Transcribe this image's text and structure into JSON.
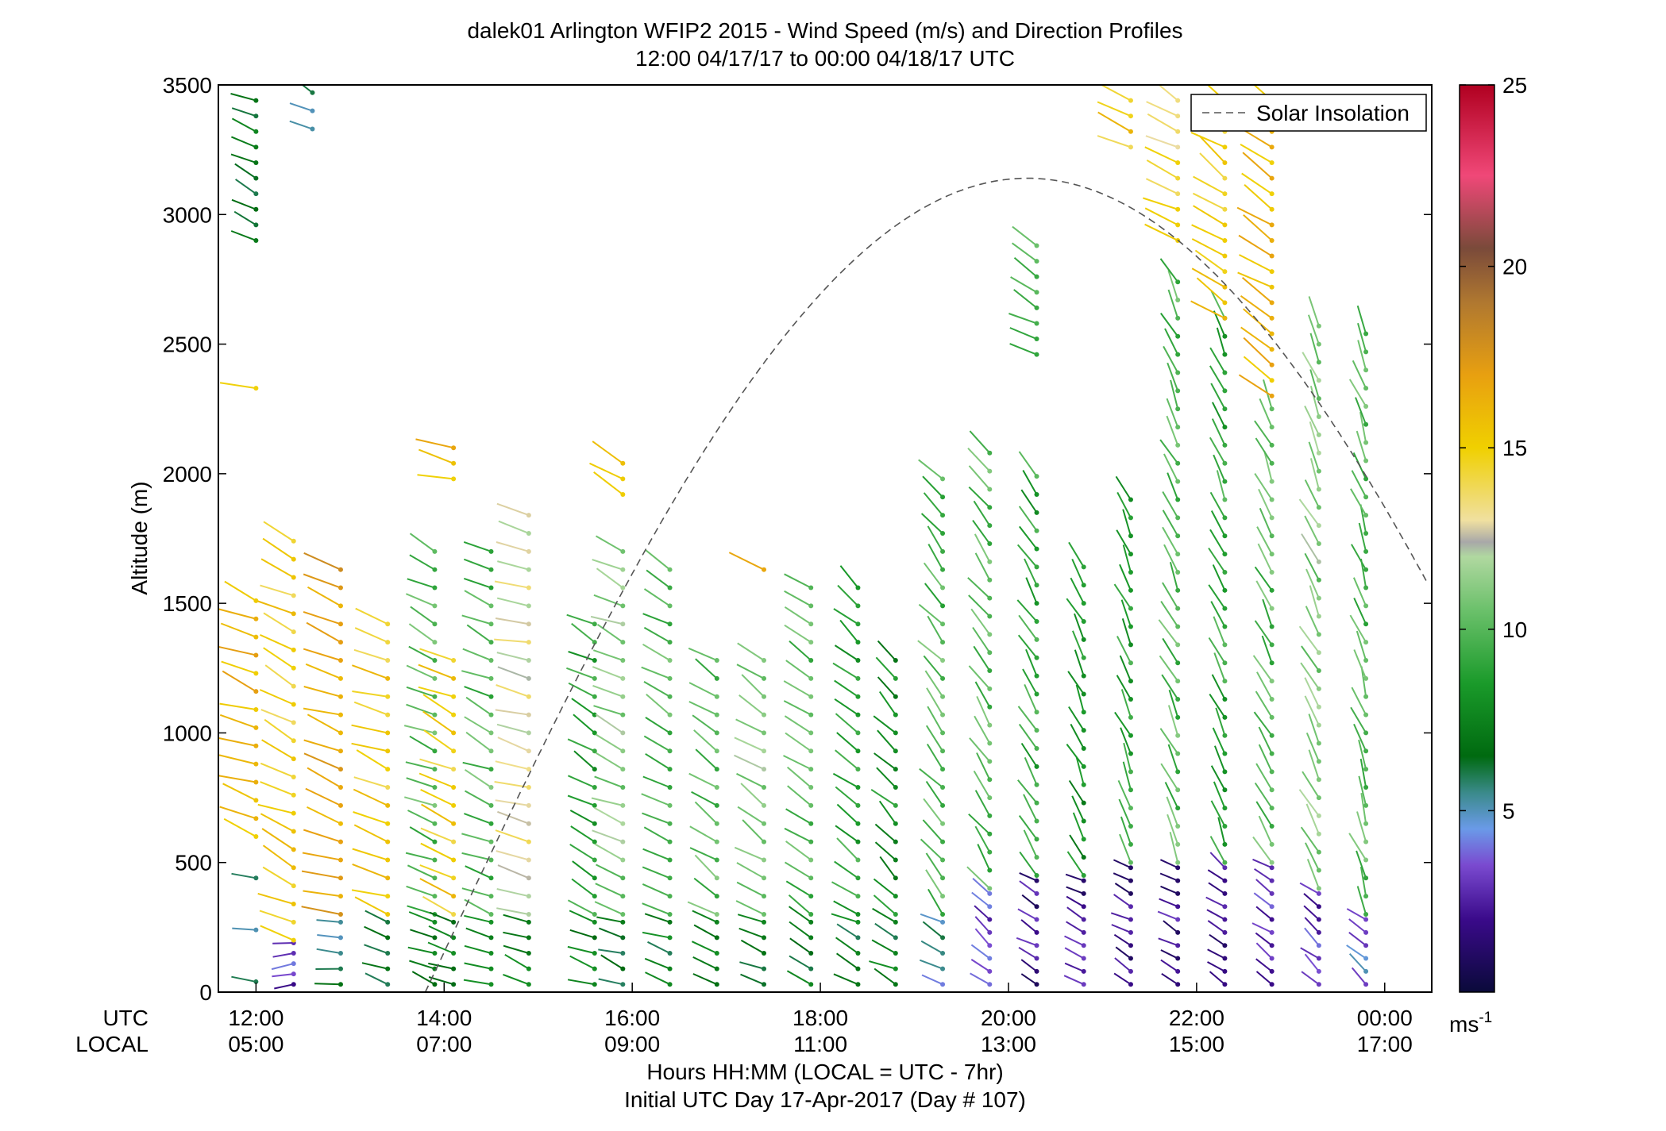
{
  "chart_data": {
    "type": "wind-barb-profile",
    "title": "dalek01 Arlington WFIP2 2015 - Wind Speed (m/s) and Direction Profiles",
    "subtitle": "12:00 04/17/17 to 00:00 04/18/17  UTC",
    "ylabel": "Altitude (m)",
    "xlabel": "Hours HH:MM  (LOCAL = UTC - 7hr)",
    "xlabel2": "Initial UTC Day 17-Apr-2017 (Day # 107)",
    "utc_label": "UTC",
    "local_label": "LOCAL",
    "ylim": [
      0,
      3500
    ],
    "xlim_hours": [
      11.6,
      24.5
    ],
    "y_ticks": [
      "0",
      "500",
      "1000",
      "1500",
      "2000",
      "2500",
      "3000",
      "3500"
    ],
    "x_ticks_utc": [
      "12:00",
      "14:00",
      "16:00",
      "18:00",
      "20:00",
      "22:00",
      "00:00"
    ],
    "x_ticks_local": [
      "05:00",
      "07:00",
      "09:00",
      "11:00",
      "13:00",
      "15:00",
      "17:00"
    ],
    "legend": {
      "entry": "Solar Insolation",
      "placement": "top-right",
      "style": "dashed"
    },
    "colorbar": {
      "range": [
        0,
        25
      ],
      "ticks": [
        "5",
        "10",
        "15",
        "20",
        "25"
      ],
      "unit_text": "ms",
      "unit_exp": "-1",
      "stops": [
        {
          "v": 0,
          "c": "#0a0a3a"
        },
        {
          "v": 2,
          "c": "#3a0a8a"
        },
        {
          "v": 3.5,
          "c": "#7a4ad0"
        },
        {
          "v": 4.5,
          "c": "#6a9ae8"
        },
        {
          "v": 5.5,
          "c": "#3a8a8a"
        },
        {
          "v": 6.5,
          "c": "#006a10"
        },
        {
          "v": 8.5,
          "c": "#1a9a2a"
        },
        {
          "v": 10.5,
          "c": "#6ac06a"
        },
        {
          "v": 12,
          "c": "#b0d8a0"
        },
        {
          "v": 12.4,
          "c": "#a8a8a8"
        },
        {
          "v": 13,
          "c": "#f0e0a0"
        },
        {
          "v": 15,
          "c": "#f0d000"
        },
        {
          "v": 17,
          "c": "#e8a010"
        },
        {
          "v": 19,
          "c": "#b07830"
        },
        {
          "v": 20.5,
          "c": "#7a4a3a"
        },
        {
          "v": 22.5,
          "c": "#f04878"
        },
        {
          "v": 25,
          "c": "#b00020"
        }
      ]
    },
    "solar_insolation_peak_altitude_m": 3140,
    "solar_insolation_peak_hour_utc": 20.2,
    "solar_insolation_rise_hour_utc": 13.8,
    "profiles": [
      {
        "t": 12.0,
        "segments": [
          [
            40,
            600,
            200,
            6,
            280
          ],
          [
            600,
            1560,
            70,
            16,
            290
          ],
          [
            2330,
            2330,
            1,
            15,
            285
          ],
          [
            2900,
            3480,
            60,
            7,
            295
          ]
        ]
      },
      {
        "t": 12.4,
        "segments": [
          [
            30,
            200,
            40,
            3,
            260
          ],
          [
            200,
            1760,
            70,
            15,
            295
          ]
        ]
      },
      {
        "t": 12.6,
        "segments": [
          [
            3330,
            3480,
            70,
            6,
            300
          ]
        ]
      },
      {
        "t": 12.9,
        "segments": [
          [
            30,
            300,
            60,
            6,
            280
          ],
          [
            300,
            1640,
            70,
            17,
            290
          ]
        ]
      },
      {
        "t": 13.4,
        "segments": [
          [
            30,
            300,
            60,
            6,
            285
          ],
          [
            300,
            1480,
            70,
            15,
            290
          ]
        ]
      },
      {
        "t": 13.9,
        "segments": [
          [
            30,
            300,
            60,
            7,
            290
          ],
          [
            300,
            1760,
            70,
            10,
            295
          ]
        ]
      },
      {
        "t": 14.1,
        "segments": [
          [
            30,
            300,
            60,
            7,
            290
          ],
          [
            300,
            1280,
            70,
            15,
            295
          ],
          [
            1980,
            2130,
            60,
            16,
            280
          ]
        ]
      },
      {
        "t": 14.5,
        "segments": [
          [
            30,
            300,
            60,
            8,
            290
          ],
          [
            300,
            1700,
            70,
            10,
            295
          ]
        ]
      },
      {
        "t": 14.9,
        "segments": [
          [
            30,
            300,
            60,
            8,
            290
          ],
          [
            300,
            1840,
            70,
            13,
            285
          ]
        ]
      },
      {
        "t": 15.6,
        "segments": [
          [
            30,
            300,
            60,
            7,
            290
          ],
          [
            300,
            1480,
            70,
            9,
            300
          ]
        ]
      },
      {
        "t": 15.9,
        "segments": [
          [
            30,
            300,
            60,
            7,
            290
          ],
          [
            300,
            1760,
            70,
            11,
            295
          ],
          [
            1920,
            2060,
            60,
            15,
            300
          ]
        ]
      },
      {
        "t": 16.4,
        "segments": [
          [
            30,
            300,
            60,
            7,
            290
          ],
          [
            300,
            1690,
            70,
            10,
            300
          ]
        ]
      },
      {
        "t": 16.9,
        "segments": [
          [
            30,
            300,
            60,
            7,
            290
          ],
          [
            300,
            1340,
            70,
            10,
            305
          ]
        ]
      },
      {
        "t": 17.4,
        "segments": [
          [
            30,
            300,
            60,
            7,
            290
          ],
          [
            300,
            1340,
            70,
            11,
            305
          ],
          [
            1630,
            1630,
            1,
            16,
            290
          ]
        ]
      },
      {
        "t": 17.9,
        "segments": [
          [
            30,
            300,
            60,
            7,
            295
          ],
          [
            300,
            1580,
            70,
            10,
            305
          ]
        ]
      },
      {
        "t": 18.4,
        "segments": [
          [
            30,
            300,
            60,
            7,
            295
          ],
          [
            300,
            1560,
            70,
            9,
            310
          ]
        ]
      },
      {
        "t": 18.8,
        "segments": [
          [
            30,
            300,
            60,
            7,
            295
          ],
          [
            300,
            1340,
            70,
            8,
            315
          ]
        ]
      },
      {
        "t": 19.3,
        "segments": [
          [
            30,
            300,
            60,
            5,
            300
          ],
          [
            300,
            1980,
            70,
            10,
            320
          ]
        ]
      },
      {
        "t": 19.8,
        "segments": [
          [
            30,
            400,
            50,
            3,
            310
          ],
          [
            400,
            2120,
            70,
            10,
            325
          ]
        ]
      },
      {
        "t": 20.3,
        "segments": [
          [
            30,
            450,
            50,
            2,
            300
          ],
          [
            450,
            2000,
            70,
            9,
            330
          ],
          [
            2460,
            2900,
            60,
            10,
            300
          ]
        ]
      },
      {
        "t": 20.8,
        "segments": [
          [
            30,
            450,
            50,
            2,
            300
          ],
          [
            450,
            1700,
            70,
            8,
            335
          ]
        ]
      },
      {
        "t": 21.3,
        "segments": [
          [
            30,
            500,
            50,
            2,
            300
          ],
          [
            500,
            1900,
            70,
            9,
            335
          ],
          [
            3260,
            3480,
            60,
            15,
            300
          ]
        ]
      },
      {
        "t": 21.8,
        "segments": [
          [
            30,
            500,
            50,
            2,
            300
          ],
          [
            500,
            2760,
            70,
            10,
            335
          ],
          [
            2900,
            3480,
            60,
            14,
            300
          ]
        ]
      },
      {
        "t": 22.3,
        "segments": [
          [
            30,
            500,
            50,
            2,
            305
          ],
          [
            500,
            2600,
            70,
            9,
            335
          ],
          [
            2600,
            3480,
            60,
            15,
            305
          ]
        ]
      },
      {
        "t": 22.8,
        "segments": [
          [
            30,
            500,
            50,
            3,
            305
          ],
          [
            500,
            2300,
            70,
            10,
            335
          ],
          [
            2300,
            3480,
            60,
            16,
            305
          ]
        ]
      },
      {
        "t": 23.3,
        "segments": [
          [
            30,
            400,
            50,
            3,
            310
          ],
          [
            400,
            2600,
            70,
            11,
            335
          ]
        ]
      },
      {
        "t": 23.8,
        "segments": [
          [
            30,
            300,
            50,
            4,
            310
          ],
          [
            300,
            2600,
            70,
            10,
            340
          ]
        ]
      }
    ]
  }
}
